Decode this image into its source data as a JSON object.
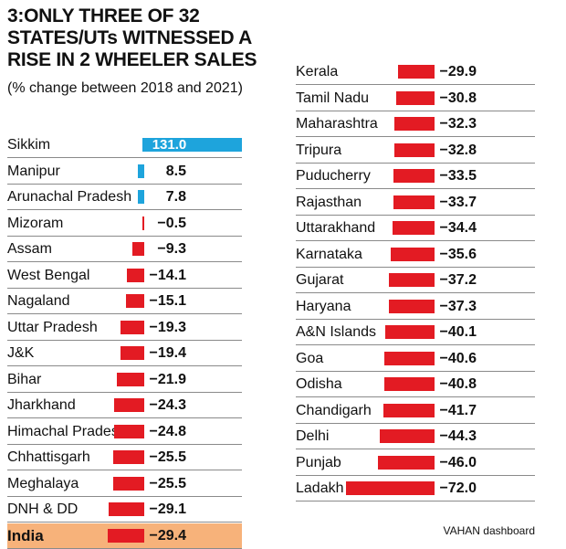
{
  "chart_data": {
    "type": "bar",
    "title": "3:ONLY THREE OF 32 STATES/UTs WITNESSED A RISE IN 2 WHEELER SALES",
    "subtitle": "(% change between 2018 and 2021)",
    "source": "VAHAN dashboard",
    "unit": "% change",
    "highlight": "India",
    "columns": [
      {
        "categories": [
          "Sikkim",
          "Manipur",
          "Arunachal Pradesh",
          "Mizoram",
          "Assam",
          "West Bengal",
          "Nagaland",
          "Uttar Pradesh",
          "J&K",
          "Bihar",
          "Jharkhand",
          "Himachal Pradesh",
          "Chhattisgarh",
          "Meghalaya",
          "DNH & DD",
          "India"
        ],
        "values": [
          131.0,
          8.5,
          7.8,
          -0.5,
          -9.3,
          -14.1,
          -15.1,
          -19.3,
          -19.4,
          -21.9,
          -24.3,
          -24.8,
          -25.5,
          -25.5,
          -29.1,
          -29.4
        ],
        "labels": [
          "131.0",
          "8.5",
          "7.8",
          "-0.5",
          "-9.3",
          "-14.1",
          "-15.1",
          "-19.3",
          "-19.4",
          "-21.9",
          "-24.3",
          "-24.8",
          "-25.5",
          "-25.5",
          "-29.1",
          "-29.4"
        ]
      },
      {
        "categories": [
          "Kerala",
          "Tamil Nadu",
          "Maharashtra",
          "Tripura",
          "Puducherry",
          "Rajasthan",
          "Uttarakhand",
          "Karnataka",
          "Gujarat",
          "Haryana",
          "A&N Islands",
          "Goa",
          "Odisha",
          "Chandigarh",
          "Delhi",
          "Punjab",
          "Ladakh"
        ],
        "values": [
          -29.9,
          -30.8,
          -32.3,
          -32.8,
          -33.5,
          -33.7,
          -34.4,
          -35.6,
          -37.2,
          -37.3,
          -40.1,
          -40.6,
          -40.8,
          -41.7,
          -44.3,
          -46.0,
          -72.0
        ],
        "labels": [
          "-29.9",
          "-30.8",
          "-32.3",
          "-32.8",
          "-33.5",
          "-33.7",
          "-34.4",
          "-35.6",
          "-37.2",
          "-37.3",
          "-40.1",
          "-40.6",
          "-40.8",
          "-41.7",
          "-44.3",
          "-46.0",
          "-72.0"
        ]
      }
    ]
  },
  "colors": {
    "negative": "#e31b23",
    "positive": "#1ea4dc",
    "highlight_row": "#f7b27a"
  }
}
